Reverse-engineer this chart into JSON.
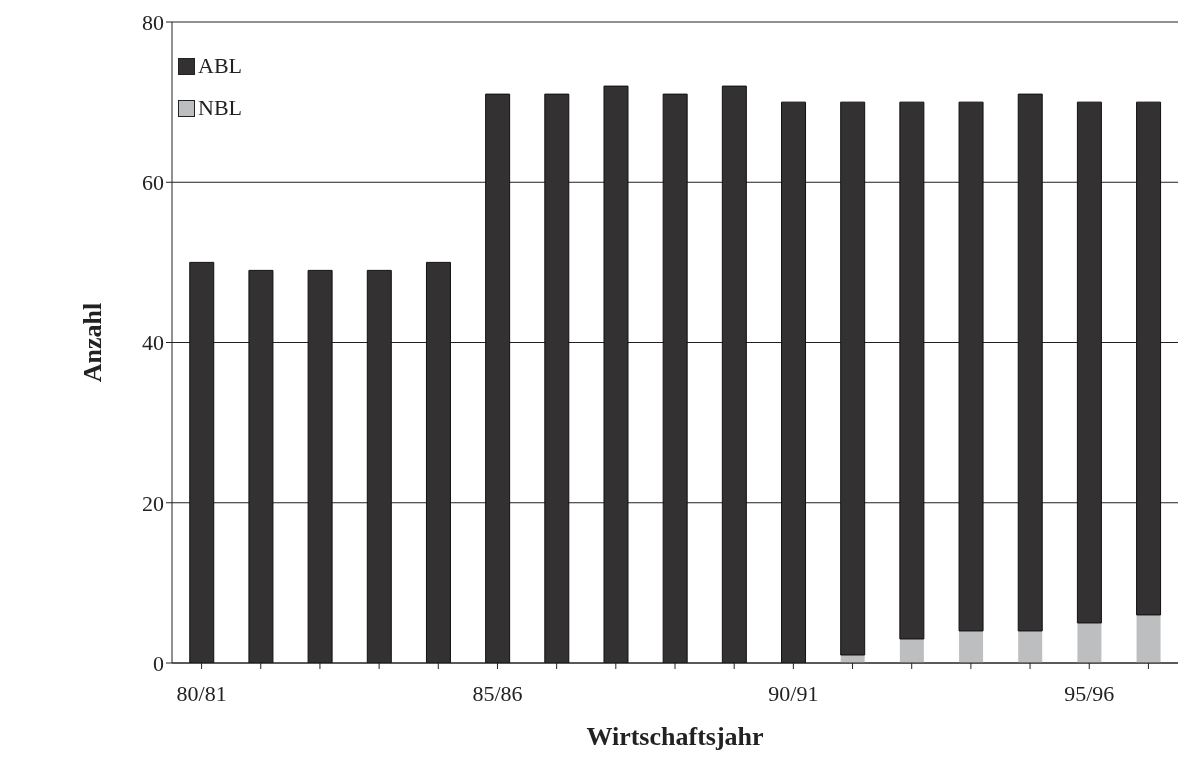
{
  "chart_data": {
    "type": "bar",
    "stacked": true,
    "xlabel": "Wirtschaftsjahr",
    "ylabel": "Anzahl",
    "categories": [
      "80/81",
      null,
      null,
      null,
      null,
      "85/86",
      null,
      null,
      null,
      null,
      "90/91",
      null,
      null,
      null,
      null,
      "95/96",
      null
    ],
    "series": [
      {
        "name": "NBL",
        "color": "#bdbec0",
        "values": [
          0,
          0,
          0,
          0,
          0,
          0,
          0,
          0,
          0,
          0,
          0,
          1,
          3,
          4,
          4,
          5,
          6
        ]
      },
      {
        "name": "ABL",
        "color": "#333132",
        "values": [
          50,
          49,
          49,
          49,
          50,
          71,
          71,
          72,
          71,
          72,
          70,
          69,
          67,
          66,
          67,
          65,
          64
        ]
      }
    ],
    "ylim": [
      0,
      80
    ],
    "yticks": [
      0,
      20,
      40,
      60,
      80
    ],
    "grid": "y",
    "legend": "top left"
  }
}
